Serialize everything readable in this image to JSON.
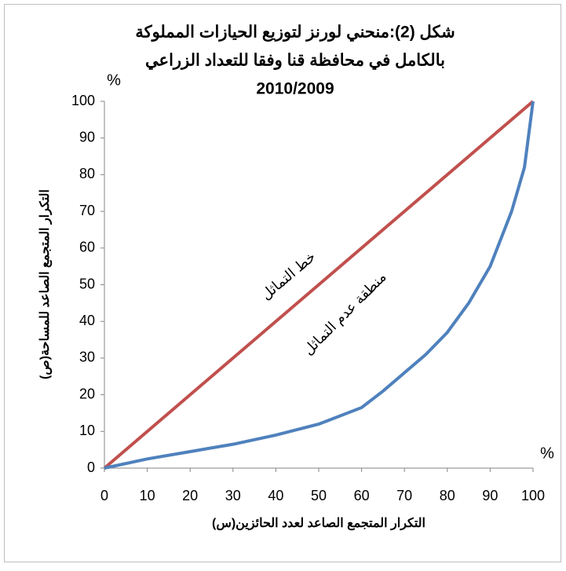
{
  "chart_data": {
    "type": "line",
    "title": [
      "شكل (2):منحني لورنز لتوزيع الحيازات المملوكة",
      "بالكامل في محافظة قنا وفقا للتعداد الزراعي",
      "2010/2009"
    ],
    "x_label": "التكرار المتجمع الصاعد لعدد الحائزين(س)",
    "y_label": "التكرار المتجمع الصاعد للمساحة(ص)",
    "annotations": [
      "خط التماثل",
      "منطقة عدم التماثل",
      "%",
      "%"
    ],
    "series": [
      {
        "color": "#c0504d",
        "x": [
          0,
          100
        ],
        "values": [
          0,
          100
        ]
      },
      {
        "color": "#4f81bd",
        "x": [
          0,
          10,
          20,
          30,
          40,
          50,
          60,
          65,
          70,
          75,
          80,
          85,
          90,
          95,
          98,
          100
        ],
        "values": [
          0,
          2.5,
          4.5,
          6.5,
          9,
          12,
          16.5,
          21,
          26,
          31,
          37,
          45,
          55,
          70,
          82,
          100
        ]
      }
    ],
    "xlim": [
      0,
      100
    ],
    "xticks": [
      0,
      10,
      20,
      30,
      40,
      50,
      60,
      70,
      80,
      90,
      100
    ],
    "ylim": [
      0,
      100
    ],
    "yticks": [
      0,
      10,
      20,
      30,
      40,
      50,
      60,
      70,
      80,
      90,
      100
    ],
    "grid": false
  }
}
